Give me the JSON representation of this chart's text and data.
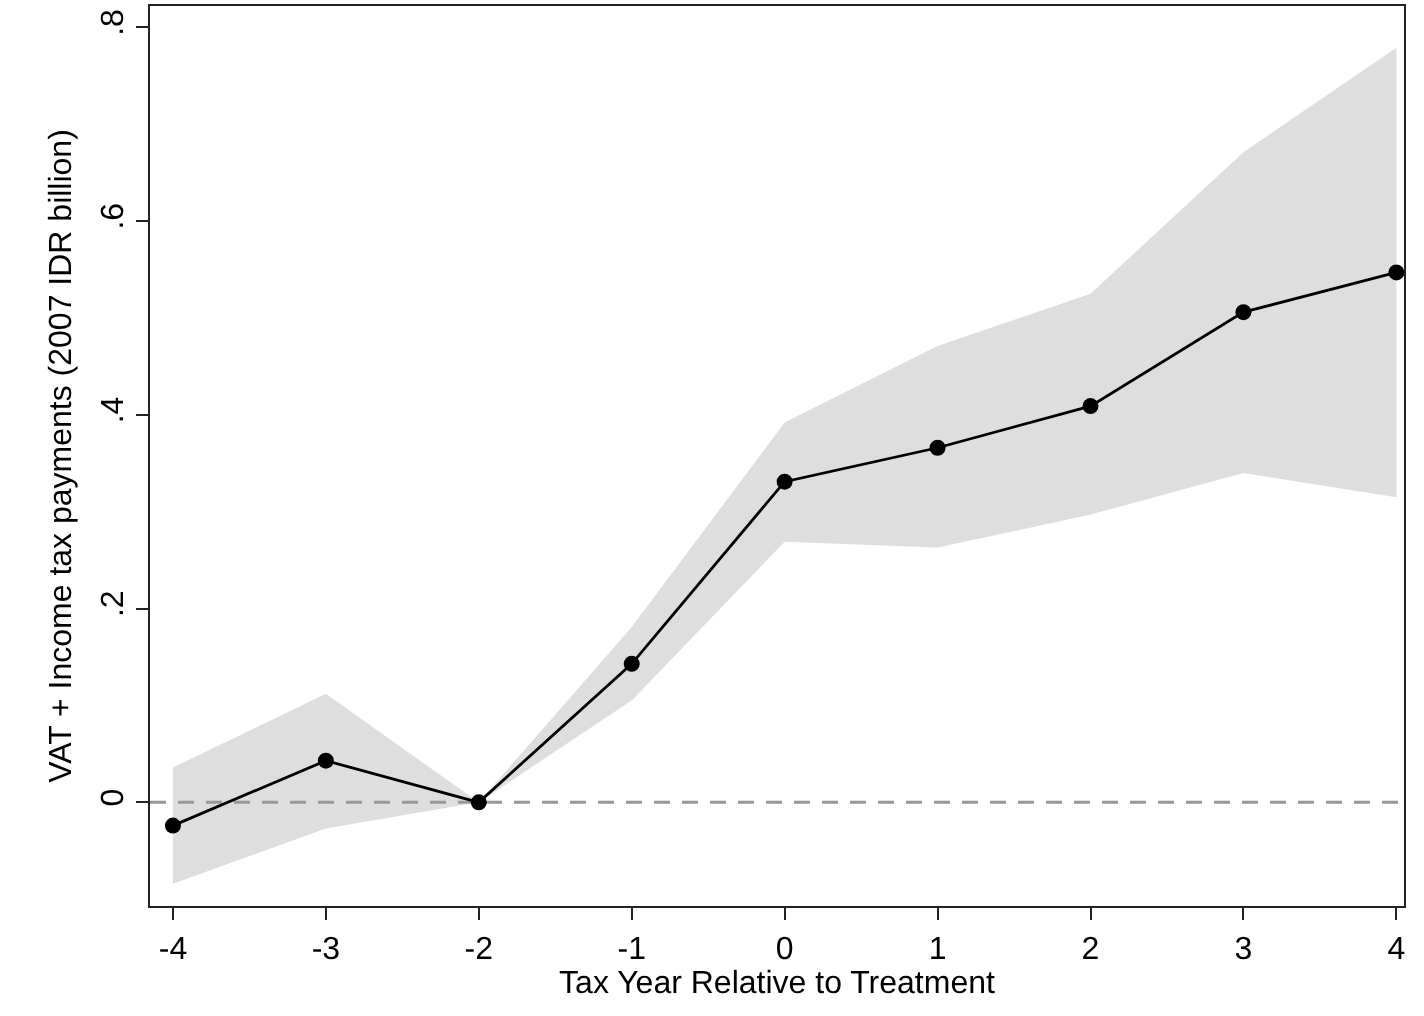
{
  "chart_data": {
    "type": "line",
    "xlabel": "Tax Year Relative to Treatment",
    "ylabel": "VAT + Income tax payments (2007 IDR billion)",
    "x": [
      -4,
      -3,
      -2,
      -1,
      0,
      1,
      2,
      3,
      4
    ],
    "series": [
      {
        "color": "#000000",
        "values": [
          -0.024,
          0.043,
          0,
          0.143,
          0.331,
          0.366,
          0.409,
          0.506,
          0.547
        ],
        "lower": [
          -0.084,
          -0.027,
          0,
          0.105,
          0.269,
          0.263,
          0.297,
          0.34,
          0.315
        ],
        "upper": [
          0.036,
          0.112,
          0,
          0.181,
          0.392,
          0.471,
          0.525,
          0.671,
          0.779
        ]
      }
    ],
    "xlim": [
      -4.15,
      4.05
    ],
    "xticks": [
      -4,
      -3,
      -2,
      -1,
      0,
      1,
      2,
      3,
      4
    ],
    "ylim": [
      -0.107,
      0.822
    ],
    "yticks": [
      0,
      {
        "value": 0.2,
        "label": ".2"
      },
      {
        "value": 0.4,
        "label": ".4"
      },
      {
        "value": 0.6,
        "label": ".6"
      },
      {
        "value": 0.8,
        "label": ".8"
      }
    ],
    "ref_lines": [
      {
        "axis": "y",
        "value": 0,
        "color": "#999999",
        "line_style": "dashed"
      }
    ],
    "marker": "circle",
    "line_style": "solid",
    "grid": false
  }
}
